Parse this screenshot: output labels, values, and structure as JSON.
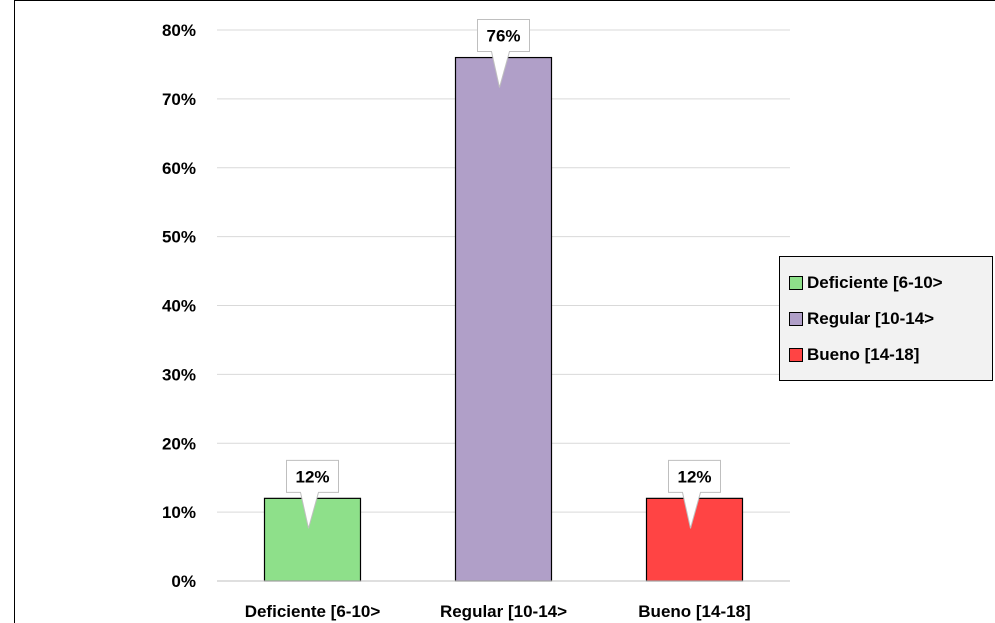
{
  "chart_data": {
    "type": "bar",
    "categories": [
      "Deficiente [6-10>",
      "Regular [10-14>",
      "Bueno [14-18]"
    ],
    "values": [
      12,
      76,
      12
    ],
    "data_labels": [
      "12%",
      "76%",
      "12%"
    ],
    "colors": [
      "#8EE08A",
      "#B09FC8",
      "#FF4444"
    ],
    "yticks": [
      "0%",
      "10%",
      "20%",
      "30%",
      "40%",
      "50%",
      "60%",
      "70%",
      "80%"
    ],
    "ylim": [
      0,
      80
    ],
    "grid": true,
    "legend_position": "right",
    "legend": [
      "Deficiente [6-10>",
      "Regular [10-14>",
      "Bueno [14-18]"
    ]
  }
}
